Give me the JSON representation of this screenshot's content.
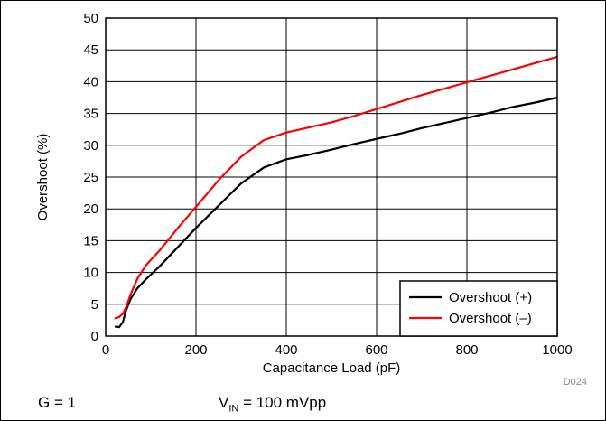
{
  "chart_data": {
    "type": "line",
    "title": "",
    "xlabel": "Capacitance Load (pF)",
    "ylabel": "Overshoot (%)",
    "xlim": [
      0,
      1000
    ],
    "ylim": [
      0,
      50
    ],
    "xticks": [
      "0",
      "200",
      "400",
      "600",
      "800",
      "1000"
    ],
    "yticks": [
      "0",
      "5",
      "10",
      "15",
      "20",
      "25",
      "30",
      "35",
      "40",
      "45",
      "50"
    ],
    "grid": true,
    "legend_position": "bottom-right",
    "series": [
      {
        "name": "Overshoot (+)",
        "color": "#000000",
        "x": [
          20,
          30,
          38,
          45,
          55,
          70,
          90,
          120,
          160,
          200,
          250,
          300,
          350,
          400,
          450,
          500,
          550,
          600,
          650,
          700,
          750,
          800,
          850,
          900,
          950,
          1000
        ],
        "y": [
          1.5,
          1.4,
          2.2,
          4.0,
          5.8,
          7.5,
          9.0,
          11.0,
          14.0,
          17.0,
          20.5,
          24.0,
          26.5,
          27.8,
          28.5,
          29.3,
          30.2,
          31.0,
          31.8,
          32.7,
          33.5,
          34.3,
          35.1,
          36.0,
          36.7,
          37.5
        ]
      },
      {
        "name": "Overshoot (–)",
        "color": "#ff0000",
        "x": [
          20,
          30,
          38,
          45,
          55,
          70,
          90,
          120,
          160,
          200,
          250,
          300,
          350,
          400,
          450,
          500,
          550,
          600,
          650,
          700,
          750,
          800,
          850,
          900,
          950,
          1000
        ],
        "y": [
          2.8,
          3.0,
          3.5,
          4.5,
          6.5,
          9.0,
          11.2,
          13.5,
          17.0,
          20.3,
          24.5,
          28.2,
          30.8,
          32.0,
          32.8,
          33.6,
          34.6,
          35.7,
          36.8,
          37.9,
          38.9,
          39.9,
          40.9,
          41.9,
          42.9,
          43.9
        ]
      }
    ]
  },
  "figure_code": "D024",
  "conditions": {
    "gain": "G = 1",
    "vin_prefix": "V",
    "vin_subscript": "IN",
    "vin_value": " = 100 mVpp"
  }
}
